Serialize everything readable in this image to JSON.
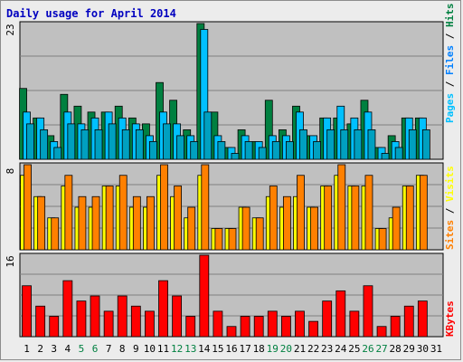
{
  "title": "Daily usage for April 2014",
  "chart_data": {
    "type": "bar",
    "title": "Daily usage for April 2014",
    "categories": [
      "1",
      "2",
      "3",
      "4",
      "5",
      "6",
      "7",
      "8",
      "9",
      "10",
      "11",
      "12",
      "13",
      "14",
      "15",
      "16",
      "17",
      "18",
      "19",
      "20",
      "21",
      "22",
      "23",
      "24",
      "25",
      "26",
      "27",
      "28",
      "29",
      "30",
      "31"
    ],
    "weekend_days": [
      "5",
      "6",
      "12",
      "13",
      "19",
      "20",
      "26",
      "27"
    ],
    "panels": [
      {
        "id": "hits-files-pages",
        "ymax_label": "23",
        "ylim": [
          0,
          23
        ],
        "legend": [
          "Pages",
          "Files",
          "Hits"
        ],
        "series": [
          {
            "name": "Hits",
            "color": "#008040",
            "values": [
              12,
              7,
              4,
              11,
              9,
              8,
              8,
              9,
              7,
              6,
              13,
              10,
              5,
              23,
              8,
              2,
              5,
              3,
              10,
              5,
              9,
              4,
              7,
              7,
              6,
              10,
              2,
              4,
              7,
              7,
              0
            ]
          },
          {
            "name": "Files",
            "color": "#00C0FF",
            "values": [
              8,
              7,
              3,
              8,
              6,
              7,
              8,
              7,
              6,
              4,
              8,
              6,
              4,
              22,
              4,
              2,
              4,
              3,
              4,
              4,
              8,
              4,
              7,
              9,
              7,
              8,
              2,
              3,
              7,
              7,
              0
            ]
          },
          {
            "name": "Pages",
            "color": "#00A0C0",
            "values": [
              6,
              5,
              2,
              6,
              5,
              5,
              6,
              5,
              5,
              3,
              6,
              4,
              3,
              8,
              3,
              1,
              3,
              2,
              3,
              3,
              5,
              3,
              5,
              5,
              5,
              5,
              1,
              2,
              5,
              5,
              0
            ]
          }
        ]
      },
      {
        "id": "visits-sites",
        "ymax_label": "8",
        "ylim": [
          0,
          8
        ],
        "legend": [
          "Sites",
          "Visits"
        ],
        "series": [
          {
            "name": "Visits",
            "color": "#FFFF00",
            "values": [
              7,
              5,
              3,
              6,
              4,
              4,
              6,
              6,
              4,
              4,
              7,
              5,
              3,
              7,
              2,
              2,
              4,
              3,
              5,
              4,
              5,
              4,
              6,
              7,
              6,
              6,
              2,
              3,
              6,
              7,
              0
            ]
          },
          {
            "name": "Sites",
            "color": "#FF8000",
            "values": [
              8,
              5,
              3,
              7,
              5,
              5,
              6,
              7,
              5,
              5,
              8,
              6,
              4,
              8,
              2,
              2,
              4,
              3,
              6,
              5,
              7,
              4,
              6,
              8,
              6,
              7,
              2,
              4,
              6,
              7,
              0
            ]
          }
        ]
      },
      {
        "id": "kbytes",
        "ymax_label": "16",
        "ylim": [
          0,
          16
        ],
        "legend": [
          "KBytes"
        ],
        "series": [
          {
            "name": "KBytes",
            "color": "#FF0000",
            "values": [
              10,
              6,
              4,
              11,
              7,
              8,
              5,
              8,
              6,
              5,
              11,
              8,
              4,
              16,
              5,
              2,
              4,
              4,
              5,
              4,
              5,
              3,
              7,
              9,
              5,
              10,
              2,
              4,
              6,
              7,
              0
            ]
          }
        ]
      }
    ]
  }
}
